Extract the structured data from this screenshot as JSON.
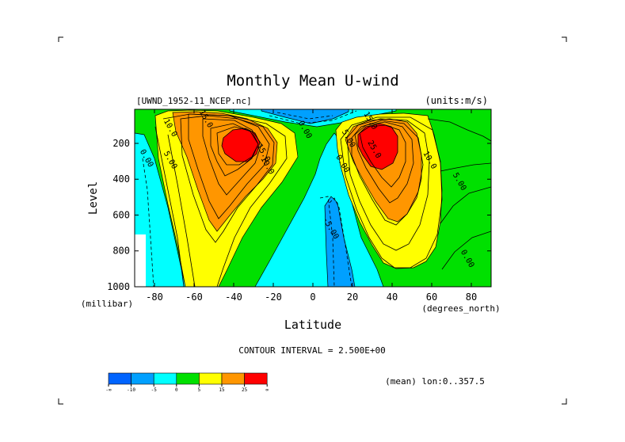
{
  "chart_data": {
    "type": "contour",
    "title": "Monthly Mean U-wind",
    "dataset": "[UWND_1952-11_NCEP.nc]",
    "units": "(units:m/s)",
    "xlabel": "Latitude",
    "xunit": "(degrees_north)",
    "ylabel": "Level",
    "yunit": "(millibar)",
    "xlim": [
      -90,
      90
    ],
    "ylim": [
      1000,
      10
    ],
    "x_ticks": [
      {
        "value": -80,
        "label": "-80"
      },
      {
        "value": -60,
        "label": "-60"
      },
      {
        "value": -40,
        "label": "-40"
      },
      {
        "value": -20,
        "label": "-20"
      },
      {
        "value": 0,
        "label": "0"
      },
      {
        "value": 20,
        "label": "20"
      },
      {
        "value": 40,
        "label": "40"
      },
      {
        "value": 60,
        "label": "60"
      },
      {
        "value": 80,
        "label": "80"
      }
    ],
    "y_ticks": [
      {
        "value": 200,
        "label": "200"
      },
      {
        "value": 400,
        "label": "400"
      },
      {
        "value": 600,
        "label": "600"
      },
      {
        "value": 800,
        "label": "800"
      },
      {
        "value": 1000,
        "label": "1000"
      }
    ],
    "contour_interval": "CONTOUR INTERVAL = 2.500E+00",
    "contour_labels": [
      {
        "text": "10.0",
        "x": -73,
        "p": 120
      },
      {
        "text": "15.0",
        "x": -55,
        "p": 70
      },
      {
        "text": "0.00",
        "x": -85,
        "p": 290
      },
      {
        "text": "5.00",
        "x": -73,
        "p": 300
      },
      {
        "text": "10.0",
        "x": -24,
        "p": 330
      },
      {
        "text": "15.0",
        "x": -26,
        "p": 260
      },
      {
        "text": "0.00",
        "x": -5,
        "p": 130
      },
      {
        "text": "5.00",
        "x": 17,
        "p": 180
      },
      {
        "text": "15.0",
        "x": 28,
        "p": 80
      },
      {
        "text": "25.0",
        "x": 30,
        "p": 240
      },
      {
        "text": "0.00",
        "x": 14,
        "p": 320
      },
      {
        "text": "10.0",
        "x": 58,
        "p": 300
      },
      {
        "text": "5.00",
        "x": 73,
        "p": 420
      },
      {
        "text": "-5.00",
        "x": 8,
        "p": 680
      },
      {
        "text": "0.00",
        "x": 77,
        "p": 850
      }
    ],
    "jets": [
      {
        "name": "southern-hemisphere jet",
        "lat": -37,
        "p": 200,
        "max_ms": 27.5
      },
      {
        "name": "northern-hemisphere jet",
        "lat": 38,
        "p": 200,
        "max_ms": 27.5
      }
    ],
    "colorbar": {
      "levels": [
        "-∞",
        "-10",
        "-5",
        "0",
        "5",
        "15",
        "25",
        "∞"
      ],
      "colors": [
        "#0064ff",
        "#00a0ff",
        "#00ffff",
        "#00e000",
        "#ffff00",
        "#ff9600",
        "#ff0000"
      ]
    },
    "footer_note": "(mean) lon:0..357.5"
  }
}
